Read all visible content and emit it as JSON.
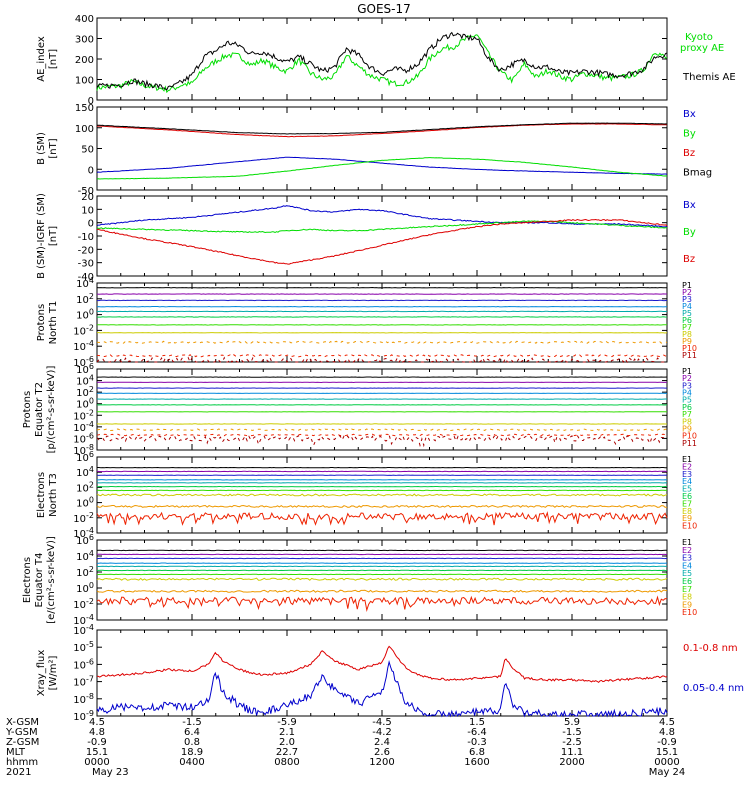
{
  "title": "GOES-17",
  "colors": {
    "black": "#000000",
    "green": "#00dd00",
    "red": "#dd0000",
    "blue": "#0000cc",
    "darkred": "#990000",
    "pcolors": [
      "#000000",
      "#8800aa",
      "#1a1acc",
      "#0088dd",
      "#00aaaa",
      "#00cc44",
      "#33dd00",
      "#cccc00",
      "#ee9900",
      "#ee2200",
      "#aa0000"
    ]
  },
  "chart_data": [
    {
      "type": "line",
      "id": "ae",
      "ylabel": "AE_index\n[nT]",
      "ylim": [
        0,
        400
      ],
      "yticks": [
        "400",
        "300",
        "200",
        "100",
        "0"
      ],
      "series": [
        {
          "name": "Kyoto proxy AE",
          "label_lines": [
            "Kyoto",
            "proxy AE"
          ],
          "color": "#00dd00",
          "x": [
            0,
            1,
            1.5,
            2,
            2.5,
            3,
            3.3,
            3.6,
            4,
            4.5,
            5,
            5.5,
            6,
            6.5,
            7,
            7.5,
            8,
            8.5,
            9,
            9.5,
            10,
            10.5,
            11,
            11.5,
            12,
            12.5,
            13,
            13.5,
            14,
            14.5,
            15,
            15.5,
            16,
            16.5,
            17,
            17.5,
            18,
            18.5,
            19,
            19.5,
            20,
            20.5,
            21,
            21.5,
            22,
            22.5,
            23,
            23.5,
            24
          ],
          "y": [
            60,
            70,
            90,
            70,
            60,
            50,
            60,
            75,
            80,
            150,
            190,
            220,
            215,
            170,
            195,
            160,
            140,
            195,
            130,
            100,
            115,
            215,
            165,
            120,
            100,
            80,
            85,
            115,
            200,
            250,
            260,
            295,
            320,
            220,
            135,
            95,
            175,
            110,
            145,
            115,
            100,
            130,
            120,
            105,
            110,
            120,
            145,
            240,
            200
          ]
        },
        {
          "name": "Themis AE",
          "label_lines": [
            "Themis AE"
          ],
          "color": "#000000",
          "x": [
            0,
            1,
            1.5,
            2,
            2.5,
            3,
            3.3,
            3.6,
            4,
            4.5,
            5,
            5.5,
            6,
            6.5,
            7,
            7.5,
            8,
            8.5,
            9,
            9.5,
            10,
            10.5,
            11,
            11.5,
            12,
            12.5,
            13,
            13.5,
            14,
            14.5,
            15,
            15.5,
            16,
            16.5,
            17,
            17.5,
            18,
            18.5,
            19,
            19.5,
            20,
            20.5,
            21,
            21.5,
            22,
            22.5,
            23,
            23.5,
            24
          ],
          "y": [
            65,
            75,
            95,
            80,
            70,
            55,
            70,
            90,
            120,
            210,
            240,
            280,
            265,
            225,
            235,
            210,
            185,
            210,
            175,
            140,
            160,
            250,
            220,
            160,
            130,
            150,
            145,
            175,
            245,
            300,
            325,
            305,
            300,
            200,
            145,
            175,
            195,
            160,
            160,
            135,
            130,
            140,
            135,
            125,
            120,
            130,
            150,
            210,
            225
          ]
        }
      ]
    },
    {
      "type": "line",
      "id": "bsm",
      "ylabel": "B (SM)\n[nT]",
      "ylim": [
        -60,
        150
      ],
      "yticks": [
        "150",
        "100",
        "50",
        "0",
        "-50"
      ],
      "series": [
        {
          "name": "Bx",
          "color": "#0000cc",
          "x": [
            0,
            3,
            6,
            8,
            10,
            12,
            14,
            16,
            18,
            20,
            22,
            24
          ],
          "y": [
            -15,
            -5,
            12,
            23,
            18,
            8,
            -2,
            -8,
            -12,
            -15,
            -18,
            -20
          ]
        },
        {
          "name": "By",
          "color": "#00dd00",
          "x": [
            0,
            3,
            6,
            8,
            10,
            12,
            14,
            16,
            18,
            20,
            22,
            24
          ],
          "y": [
            -32,
            -30,
            -25,
            -12,
            2,
            15,
            22,
            18,
            10,
            -2,
            -15,
            -25
          ]
        },
        {
          "name": "Bz",
          "color": "#dd0000",
          "x": [
            0,
            3,
            6,
            8,
            10,
            12,
            14,
            16,
            18,
            20,
            22,
            24
          ],
          "y": [
            102,
            92,
            80,
            75,
            77,
            83,
            90,
            98,
            104,
            107,
            107,
            105
          ]
        },
        {
          "name": "Bmag",
          "color": "#000000",
          "x": [
            0,
            3,
            6,
            8,
            10,
            12,
            14,
            16,
            18,
            20,
            22,
            24
          ],
          "y": [
            104,
            95,
            85,
            82,
            83,
            86,
            93,
            100,
            105,
            109,
            109,
            107
          ]
        }
      ]
    },
    {
      "type": "line",
      "id": "digrf",
      "ylabel": "B (SM)-IGRF (SM)\n[nT]",
      "ylim": [
        -40,
        20
      ],
      "yticks": [
        "20",
        "10",
        "0",
        "-10",
        "-20",
        "-30",
        "-40"
      ],
      "series": [
        {
          "name": "Bx",
          "color": "#0000cc",
          "x": [
            0,
            2,
            4,
            6,
            7.5,
            8,
            9,
            10,
            11,
            12,
            13,
            14,
            15,
            16,
            17,
            18,
            19,
            20,
            22,
            24
          ],
          "y": [
            -2,
            2,
            4,
            8,
            11,
            13,
            9,
            8,
            10,
            9,
            6,
            3,
            2,
            1,
            0,
            0,
            0,
            -1,
            -1,
            -3
          ]
        },
        {
          "name": "By",
          "color": "#00dd00",
          "x": [
            0,
            2,
            4,
            6,
            7.5,
            8,
            9,
            10,
            11,
            12,
            13,
            14,
            15,
            16,
            17,
            18,
            19,
            20,
            22,
            24
          ],
          "y": [
            -4,
            -5,
            -6,
            -7,
            -7,
            -6,
            -5,
            -6,
            -6,
            -5,
            -4,
            -3,
            -2,
            -1,
            0,
            1,
            1,
            0,
            -2,
            -4
          ]
        },
        {
          "name": "Bz",
          "color": "#dd0000",
          "x": [
            0,
            2,
            4,
            6,
            7.5,
            8,
            9,
            10,
            11,
            12,
            13,
            14,
            15,
            16,
            17,
            18,
            19,
            20,
            22,
            24
          ],
          "y": [
            -5,
            -12,
            -18,
            -25,
            -30,
            -31,
            -28,
            -25,
            -21,
            -17,
            -13,
            -9,
            -6,
            -3,
            -1,
            0,
            1,
            2,
            2,
            -2
          ]
        }
      ]
    },
    {
      "type": "line",
      "id": "pn",
      "log": true,
      "ylabel": "Protons\nNorth T1",
      "ylim": [
        -6,
        4
      ],
      "yticks": [
        "10^4",
        "10^2",
        "10^0",
        "10^-2",
        "10^-4",
        "10^-6"
      ],
      "series_names": [
        "P1",
        "P2",
        "P3",
        "P4",
        "P5",
        "P6",
        "P7",
        "P8",
        "P9",
        "P10",
        "P11"
      ],
      "levels": [
        3.4,
        2.6,
        1.8,
        1.0,
        0.4,
        -0.3,
        -1.3,
        -2.3,
        -3.5,
        -5.2,
        -5.9
      ]
    },
    {
      "type": "line",
      "id": "pe",
      "log": true,
      "ylabel": "Protons\nEquator T2\n[p/(cm²-s-sr-keV)]",
      "ylim": [
        -8,
        6
      ],
      "yticks": [
        "10^6",
        "10^4",
        "10^2",
        "10^0",
        "10^-2",
        "10^-4",
        "10^-6",
        "10^-8"
      ],
      "series_names": [
        "P1",
        "P2",
        "P3",
        "P4",
        "P5",
        "P6",
        "P7",
        "P8",
        "P9",
        "P10",
        "P11"
      ],
      "levels": [
        4.6,
        3.7,
        2.7,
        1.8,
        0.8,
        -0.2,
        -1.4,
        -3.5,
        -4.5,
        -5.4,
        -6.0
      ]
    },
    {
      "type": "line",
      "id": "en",
      "log": true,
      "ylabel": "Electrons\nNorth T3",
      "ylim": [
        -4,
        6
      ],
      "yticks": [
        "10^6",
        "10^4",
        "10^2",
        "10^0",
        "10^-2",
        "10^-4"
      ],
      "series_names": [
        "E1",
        "E2",
        "E3",
        "E4",
        "E5",
        "E6",
        "E7",
        "E8",
        "E9",
        "E10"
      ],
      "levels": [
        4.6,
        4.1,
        3.6,
        3.0,
        2.6,
        2.1,
        1.6,
        1.0,
        -0.5,
        -1.8
      ]
    },
    {
      "type": "line",
      "id": "ee",
      "log": true,
      "ylabel": "Electrons\nEquator T4\n[e/(cm²-s-sr-keV)]",
      "ylim": [
        -4,
        6
      ],
      "yticks": [
        "10^6",
        "10^4",
        "10^2",
        "10^0",
        "10^-2",
        "10^-4"
      ],
      "series_names": [
        "E1",
        "E2",
        "E3",
        "E4",
        "E5",
        "E6",
        "E7",
        "E8",
        "E9",
        "E10"
      ],
      "levels": [
        4.7,
        4.2,
        3.7,
        3.1,
        2.7,
        2.2,
        1.7,
        1.1,
        -0.4,
        -1.6
      ]
    },
    {
      "type": "line",
      "id": "xray",
      "log": true,
      "ylabel": "Xray_flux\n[W/m²]",
      "ylim": [
        -9,
        -4
      ],
      "yticks": [
        "10^-4",
        "10^-5",
        "10^-6",
        "10^-7",
        "10^-8",
        "10^-9"
      ],
      "series": [
        {
          "name": "0.1-0.8 nm",
          "color": "#dd0000",
          "x": [
            0,
            1,
            2,
            3,
            4,
            4.7,
            5,
            5.3,
            6,
            6.5,
            7,
            8,
            9,
            9.5,
            10,
            11,
            12,
            12.3,
            12.6,
            13,
            13.5,
            14,
            15,
            16,
            17,
            17.2,
            17.5,
            18,
            19,
            20,
            21,
            22,
            23,
            24
          ],
          "y": [
            -6.7,
            -6.6,
            -6.5,
            -6.3,
            -6.4,
            -6.0,
            -5.3,
            -5.8,
            -6.3,
            -6.5,
            -6.6,
            -6.5,
            -6.0,
            -5.2,
            -5.8,
            -6.3,
            -5.9,
            -4.9,
            -5.5,
            -6.2,
            -6.6,
            -6.8,
            -6.9,
            -6.8,
            -6.7,
            -5.6,
            -6.2,
            -6.8,
            -6.9,
            -6.9,
            -7.0,
            -6.9,
            -6.8,
            -6.7
          ]
        },
        {
          "name": "0.05-0.4 nm",
          "color": "#0000cc",
          "x": [
            0,
            1,
            2,
            3,
            4,
            4.7,
            5,
            5.3,
            6,
            6.5,
            7,
            8,
            9,
            9.5,
            10,
            11,
            12,
            12.3,
            12.6,
            13,
            13.5,
            14,
            15,
            16,
            17,
            17.2,
            17.5,
            18,
            19,
            20,
            21,
            22,
            23,
            24
          ],
          "y": [
            -8.7,
            -8.5,
            -8.5,
            -8.4,
            -8.5,
            -8.0,
            -6.5,
            -7.6,
            -8.4,
            -8.7,
            -8.8,
            -8.4,
            -7.8,
            -6.6,
            -7.5,
            -8.3,
            -7.6,
            -5.9,
            -7.0,
            -8.2,
            -8.7,
            -8.9,
            -8.9,
            -8.8,
            -8.7,
            -7.0,
            -8.3,
            -8.8,
            -8.9,
            -8.9,
            -8.9,
            -8.9,
            -8.8,
            -8.7
          ]
        }
      ]
    }
  ],
  "footer": {
    "row_labels": [
      "X-GSM",
      "Y-GSM",
      "Z-GSM",
      "MLT",
      "hhmm",
      "2021"
    ],
    "columns": [
      [
        "4.5",
        "4.8",
        "-0.9",
        "15.1",
        "0000",
        "May 23"
      ],
      [
        "-1.5",
        "6.4",
        "0.8",
        "18.9",
        "0400",
        ""
      ],
      [
        "-5.9",
        "2.1",
        "2.0",
        "22.7",
        "0800",
        ""
      ],
      [
        "-4.5",
        "-4.2",
        "2.4",
        "2.6",
        "1200",
        ""
      ],
      [
        "1.5",
        "-6.4",
        "-0.3",
        "6.8",
        "1600",
        ""
      ],
      [
        "5.9",
        "-1.5",
        "-2.5",
        "11.1",
        "2000",
        ""
      ],
      [
        "4.5",
        "4.8",
        "-0.9",
        "15.1",
        "0000",
        "May 24"
      ]
    ]
  }
}
